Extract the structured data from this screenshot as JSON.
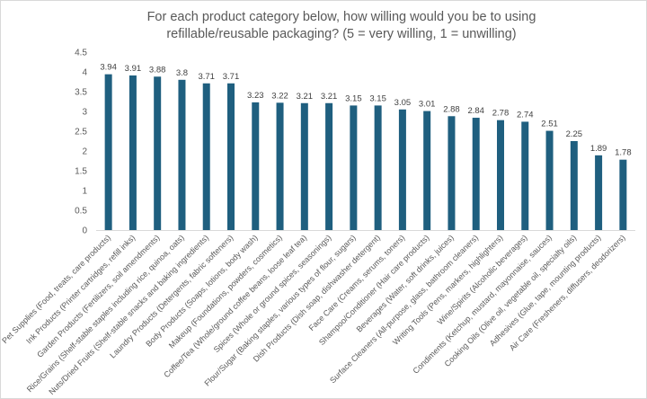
{
  "chart_data": {
    "type": "bar",
    "title": "For each product category below, how willing would you be to using refillable/reusable packaging? (5 = very willing, 1 = unwilling)",
    "xlabel": "",
    "ylabel": "",
    "ylim": [
      0,
      4.5
    ],
    "yticks": [
      "0",
      "0.5",
      "1",
      "1.5",
      "2",
      "2.5",
      "3",
      "3.5",
      "4",
      "4.5"
    ],
    "grid": false,
    "legend": "none",
    "bar_color": "#1f5f7f",
    "categories": [
      "Pet Supplies (Food, treats, care products)",
      "Ink Products (Printer cartridges, refill inks)",
      "Garden Products (Fertilizers, soil amendments)",
      "Rice/Grains (Shelf-stable staples including rice, quinoa, oats)",
      "Nuts/Dried Fruits (Shelf-stable snacks and baking ingredients)",
      "Laundry Products (Detergents, fabric softeners)",
      "Body Products (Soaps, lotions, body wash)",
      "Makeup (Foundations, powders, cosmetics)",
      "Coffee/Tea (Whole/ground coffee beans, loose leaf tea)",
      "Spices (Whole or ground spices, seasonings)",
      "Flour/Sugar (Baking staples, various types of flour, sugars)",
      "Dish Products (Dish soap, dishwasher detergent)",
      "Face Care (Creams, serums, toners)",
      "Shampoo/Conditioner (Hair care products)",
      "Beverages (Water, soft drinks, juices)",
      "Surface Cleaners (All-purpose, glass, bathroom cleaners)",
      "Writing Tools (Pens, markers, highlighters)",
      "Wine/Spirits (Alcoholic beverages)",
      "Condiments (Ketchup, mustard, mayonnaise, sauces)",
      "Cooking Oils (Olive oil, vegetable oil, specialty oils)",
      "Adhesives (Glue, tape, mounting products)",
      "Air Care (Fresheners, diffusers, deodorizers)"
    ],
    "values": [
      3.94,
      3.91,
      3.88,
      3.8,
      3.71,
      3.71,
      3.23,
      3.22,
      3.21,
      3.21,
      3.15,
      3.15,
      3.05,
      3.01,
      2.88,
      2.84,
      2.78,
      2.74,
      2.51,
      2.25,
      1.89,
      1.78
    ]
  }
}
